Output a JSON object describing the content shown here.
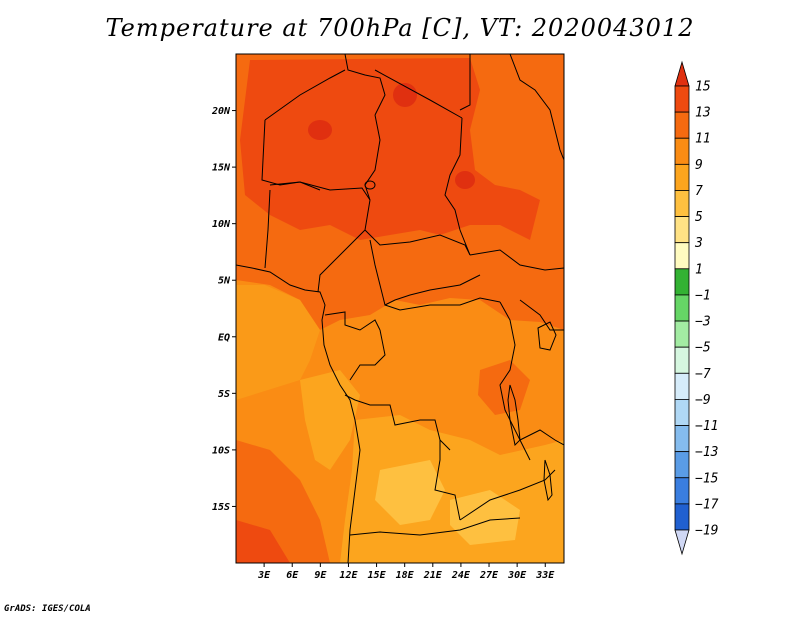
{
  "title": "Temperature at 700hPa [C], VT: 2020043012",
  "credit": "GrADS: IGES/COLA",
  "map": {
    "lon_range": [
      0,
      35
    ],
    "lat_range": [
      -20,
      25
    ],
    "lat_ticks": [
      {
        "value": 20,
        "label": "20N"
      },
      {
        "value": 15,
        "label": "15N"
      },
      {
        "value": 10,
        "label": "10N"
      },
      {
        "value": 5,
        "label": "5N"
      },
      {
        "value": 0,
        "label": "EQ"
      },
      {
        "value": -5,
        "label": "5S"
      },
      {
        "value": -10,
        "label": "10S"
      },
      {
        "value": -15,
        "label": "15S"
      }
    ],
    "lon_ticks": [
      {
        "value": 3,
        "label": "3E"
      },
      {
        "value": 6,
        "label": "6E"
      },
      {
        "value": 9,
        "label": "9E"
      },
      {
        "value": 12,
        "label": "12E"
      },
      {
        "value": 15,
        "label": "15E"
      },
      {
        "value": 18,
        "label": "18E"
      },
      {
        "value": 21,
        "label": "21E"
      },
      {
        "value": 24,
        "label": "24E"
      },
      {
        "value": 27,
        "label": "27E"
      },
      {
        "value": 30,
        "label": "30E"
      },
      {
        "value": 33,
        "label": "33E"
      }
    ]
  },
  "colorbar": {
    "labels": [
      "15",
      "13",
      "11",
      "9",
      "7",
      "5",
      "3",
      "1",
      "−1",
      "−3",
      "−5",
      "−7",
      "−9",
      "−11",
      "−13",
      "−15",
      "−17",
      "−19"
    ],
    "colors": [
      "#e03010",
      "#ee4a10",
      "#f56a10",
      "#fa8c14",
      "#fca51e",
      "#fec040",
      "#ffe285",
      "#fffbc0",
      "#33b233",
      "#66d666",
      "#a3eca3",
      "#d6f7e0",
      "#d6ecfa",
      "#b0d8f5",
      "#85bcee",
      "#5a9ce6",
      "#3a7ee0",
      "#2060d0",
      "#1040a8",
      "#0a1f80"
    ],
    "top_color": "#e03010",
    "bottom_color": "#d0d8f5"
  }
}
